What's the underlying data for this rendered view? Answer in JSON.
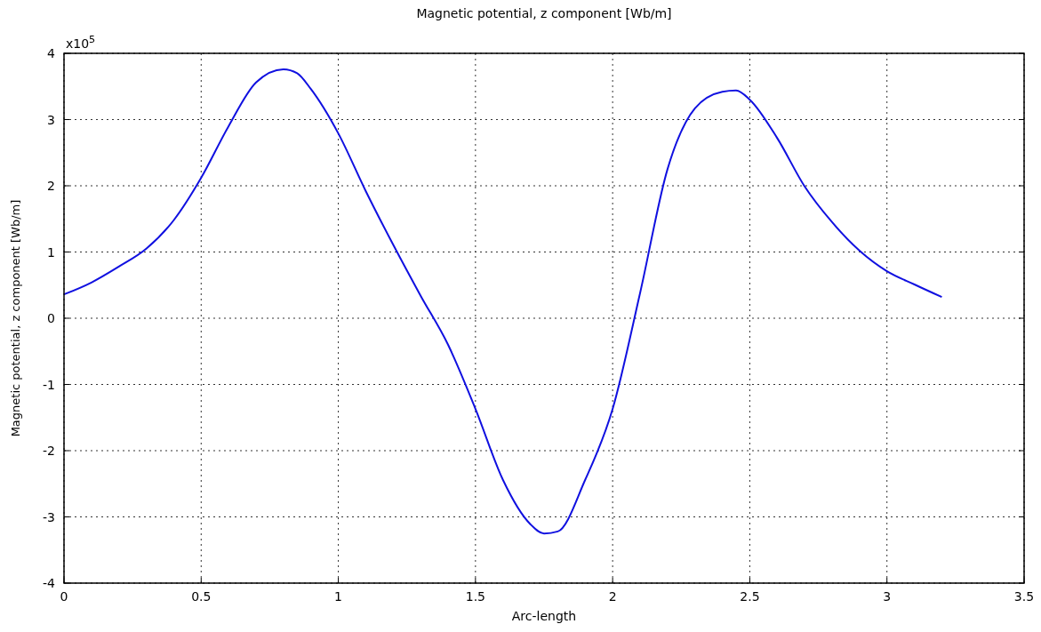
{
  "chart_data": {
    "type": "line",
    "title": "Magnetic potential, z component [Wb/m]",
    "xlabel": "Arc-length",
    "ylabel": "Magnetic potential, z component [Wb/m]",
    "annotations": [
      "x10$^{5}$"
    ],
    "x": [
      0,
      0.1,
      0.2,
      0.3,
      0.4,
      0.5,
      0.6,
      0.7,
      0.8,
      0.85,
      0.9,
      1.0,
      1.1,
      1.2,
      1.3,
      1.4,
      1.5,
      1.6,
      1.7,
      1.75,
      1.8,
      1.9,
      2.0,
      2.1,
      2.2,
      2.3,
      2.4,
      2.45,
      2.5,
      2.6,
      2.7,
      2.8,
      2.9,
      3.0,
      3.1,
      3.2
    ],
    "series": [
      {
        "color": "#1010e0",
        "values": [
          0.36,
          0.54,
          0.78,
          1.05,
          1.48,
          2.12,
          2.9,
          3.56,
          3.76,
          3.7,
          3.46,
          2.79,
          1.92,
          1.11,
          0.34,
          -0.4,
          -1.37,
          -2.44,
          -3.11,
          -3.25,
          -3.22,
          -2.44,
          -1.37,
          0.38,
          2.25,
          3.17,
          3.42,
          3.44,
          3.3,
          2.72,
          1.99,
          1.45,
          1.02,
          0.71,
          0.51,
          0.32
        ]
      }
    ],
    "xlim": [
      0,
      3.5
    ],
    "xticks": [
      0,
      0.5,
      1,
      1.5,
      2,
      2.5,
      3,
      3.5
    ],
    "ylim": [
      -4,
      4
    ],
    "yticks": [
      -4,
      -3,
      -2,
      -1,
      0,
      1,
      2,
      3,
      4
    ],
    "grid": true,
    "marker": "none",
    "line_style": "solid"
  }
}
